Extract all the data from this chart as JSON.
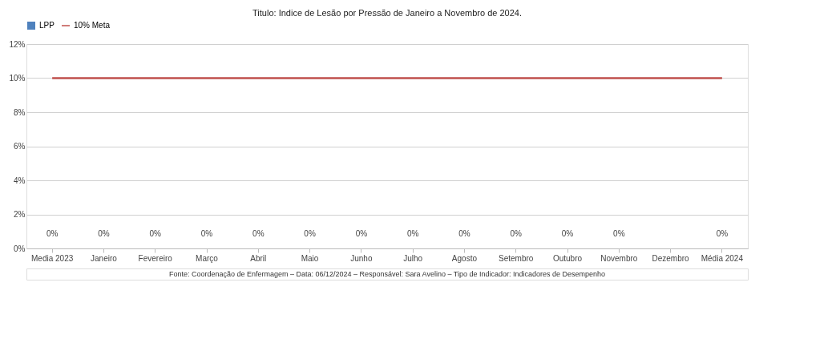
{
  "chart_data": {
    "type": "bar",
    "title": "Titulo: Indice de Lesão por Pressão de Janeiro a Novembro de 2024.",
    "categories": [
      "Media 2023",
      "Janeiro",
      "Fevereiro",
      "Março",
      "Abril",
      "Maio",
      "Junho",
      "Julho",
      "Agosto",
      "Setembro",
      "Outubro",
      "Novembro",
      "Dezembro",
      "Média 2024"
    ],
    "series": [
      {
        "name": "LPP",
        "color": "#4f81bd",
        "values": [
          0,
          0,
          0,
          0,
          0,
          0,
          0,
          0,
          0,
          0,
          0,
          0,
          null,
          0
        ],
        "value_labels": [
          "0%",
          "0%",
          "0%",
          "0%",
          "0%",
          "0%",
          "0%",
          "0%",
          "0%",
          "0%",
          "0%",
          "0%",
          null,
          "0%"
        ]
      },
      {
        "name": "10% Meta",
        "type": "line",
        "color": "#c0504d",
        "values": [
          10,
          10,
          10,
          10,
          10,
          10,
          10,
          10,
          10,
          10,
          10,
          10,
          10,
          10
        ]
      }
    ],
    "ylim": [
      0,
      12
    ],
    "yticks": [
      {
        "value": 0,
        "label": "0%"
      },
      {
        "value": 2,
        "label": "2%"
      },
      {
        "value": 4,
        "label": "4%"
      },
      {
        "value": 6,
        "label": "6%"
      },
      {
        "value": 8,
        "label": "8%"
      },
      {
        "value": 10,
        "label": "10%"
      },
      {
        "value": 12,
        "label": "12%"
      }
    ],
    "grid": "y",
    "legend": "top",
    "annotations": [
      "Fonte: Coordenação de Enfermagem – Data: 06/12/2024 – Responsável: Sara Avelino – Tipo de Indicador: Indicadores de Desempenho"
    ]
  }
}
